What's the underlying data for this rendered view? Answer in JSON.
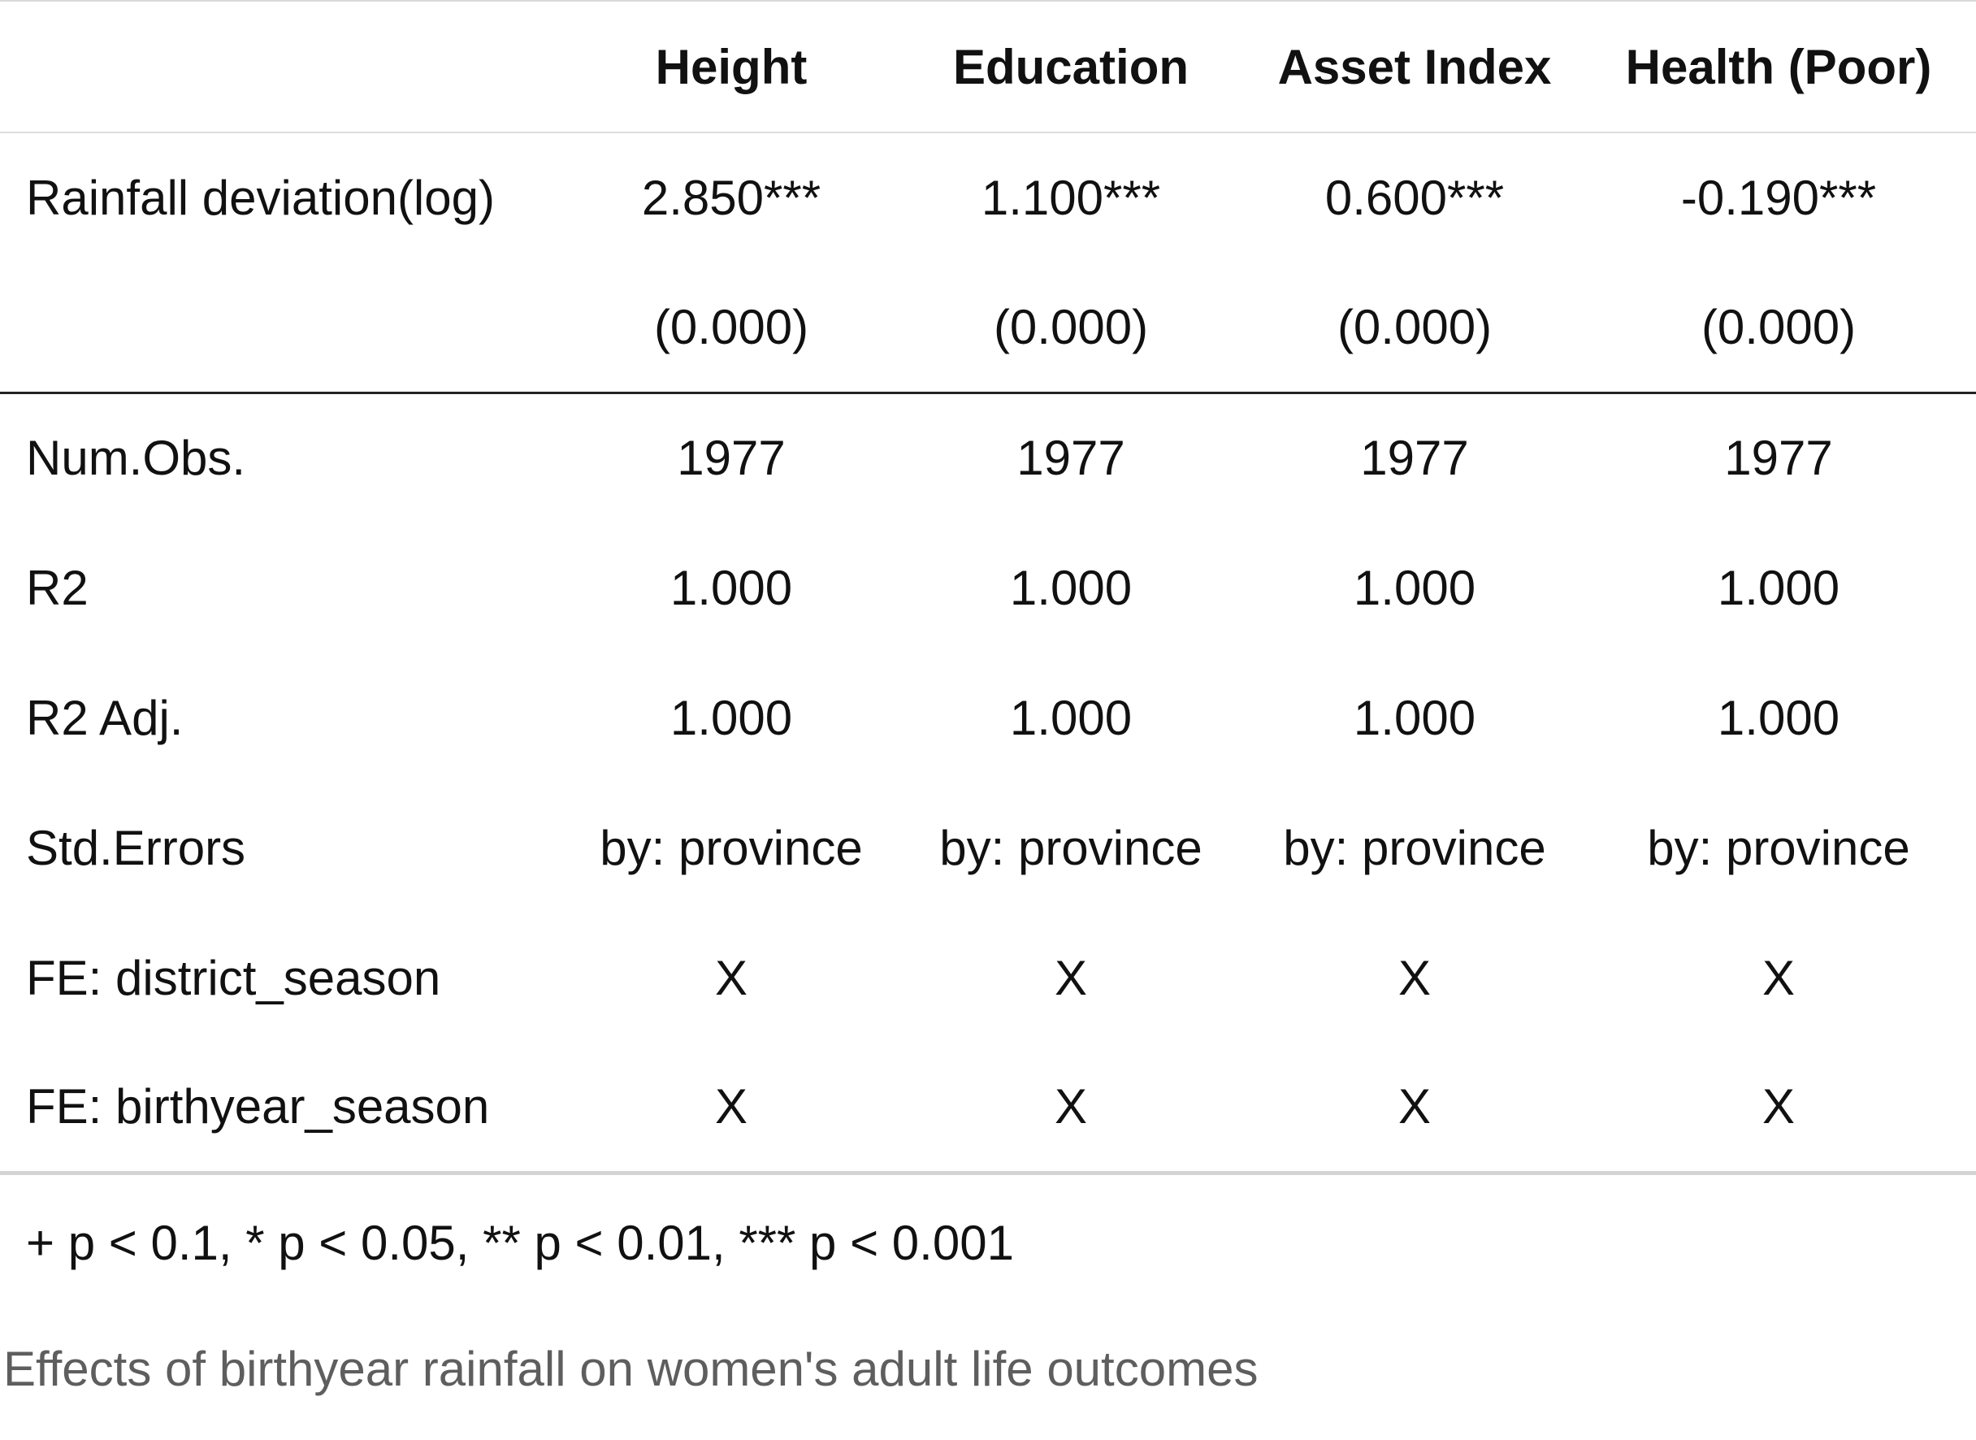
{
  "table": {
    "columns": [
      "",
      "Height",
      "Education",
      "Asset Index",
      "Health (Poor)"
    ],
    "coefficient_rows": [
      {
        "label": "Rainfall deviation(log)",
        "values": [
          "2.850***",
          "1.100***",
          "0.600***",
          "-0.190***"
        ]
      },
      {
        "label": "",
        "values": [
          "(0.000)",
          "(0.000)",
          "(0.000)",
          "(0.000)"
        ]
      }
    ],
    "stat_rows": [
      {
        "label": "Num.Obs.",
        "values": [
          "1977",
          "1977",
          "1977",
          "1977"
        ]
      },
      {
        "label": "R2",
        "values": [
          "1.000",
          "1.000",
          "1.000",
          "1.000"
        ]
      },
      {
        "label": "R2 Adj.",
        "values": [
          "1.000",
          "1.000",
          "1.000",
          "1.000"
        ]
      },
      {
        "label": "Std.Errors",
        "values": [
          "by: province",
          "by: province",
          "by: province",
          "by: province"
        ]
      },
      {
        "label": "FE: district_season",
        "values": [
          "X",
          "X",
          "X",
          "X"
        ]
      },
      {
        "label": "FE: birthyear_season",
        "values": [
          "X",
          "X",
          "X",
          "X"
        ]
      }
    ],
    "footnote": "+ p < 0.1, * p < 0.05, ** p < 0.01, *** p < 0.001"
  },
  "caption": "Effects of birthyear rainfall on women's adult life outcomes"
}
